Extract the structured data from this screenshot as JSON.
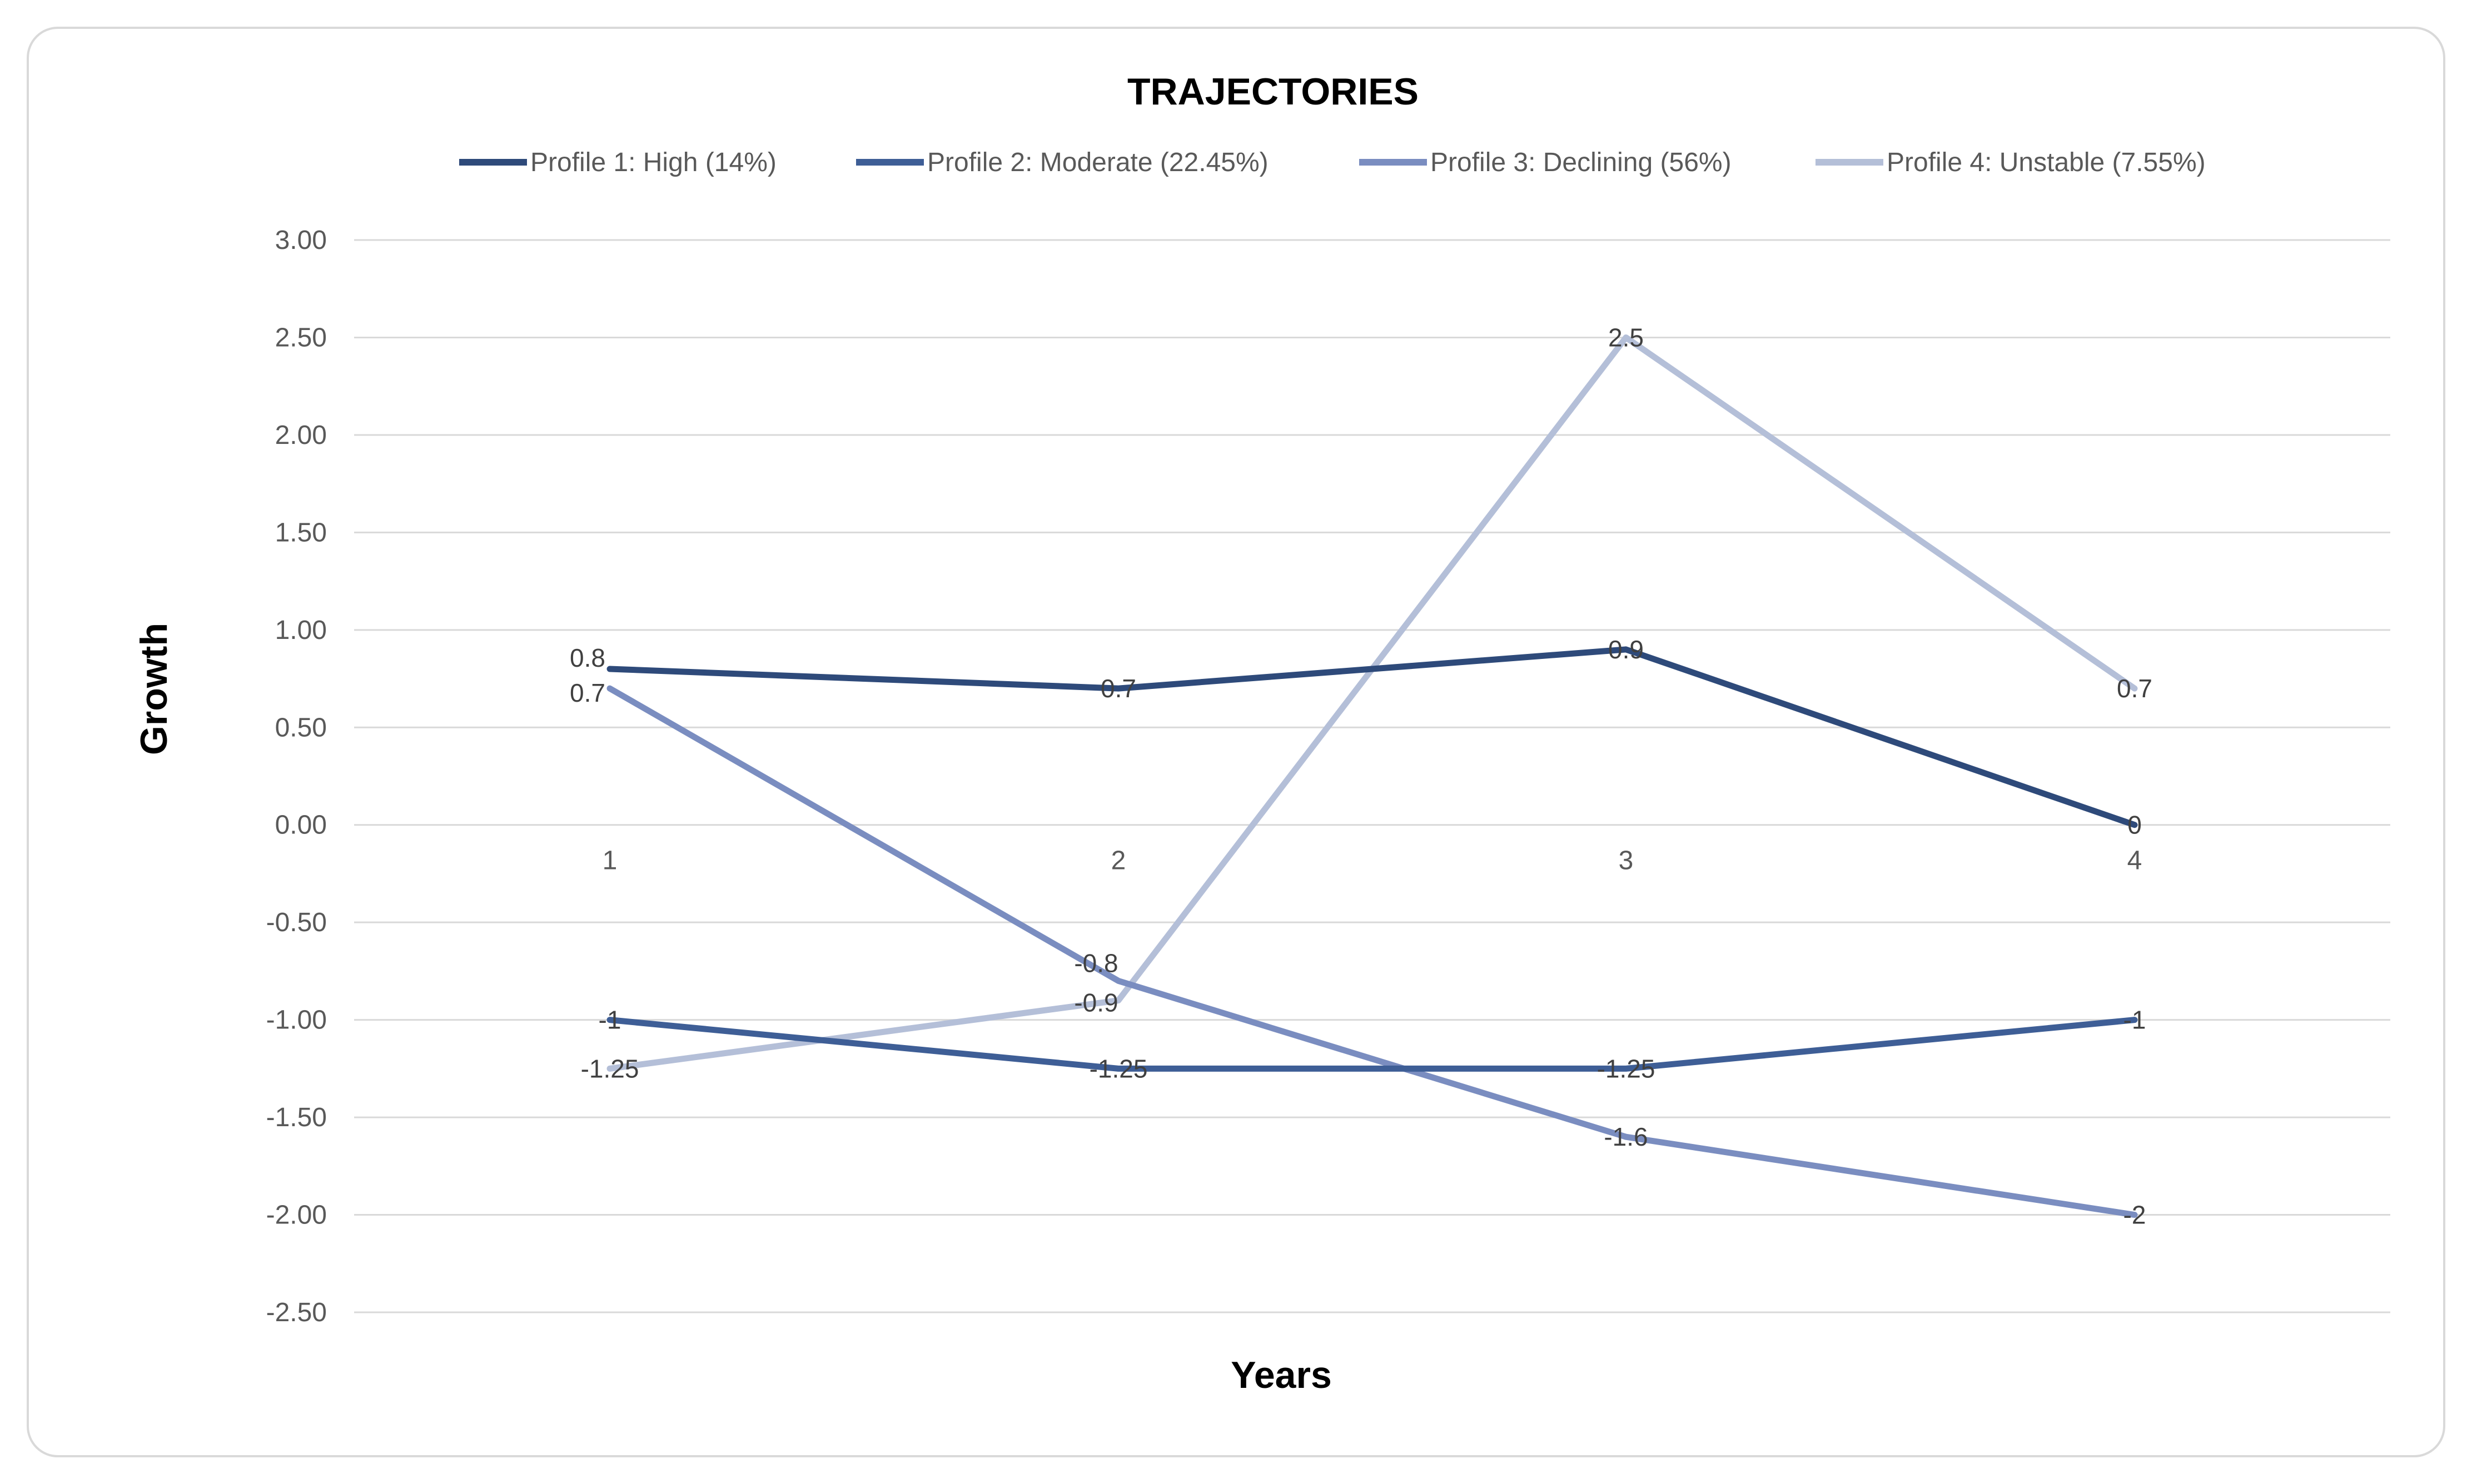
{
  "chart_data": {
    "type": "line",
    "title": "TRAJECTORIES",
    "xlabel": "Years",
    "ylabel": "Growth",
    "categories": [
      "1",
      "2",
      "3",
      "4"
    ],
    "y_ticks": [
      "3.00",
      "2.50",
      "2.00",
      "1.50",
      "1.00",
      "0.50",
      "0.00",
      "-0.50",
      "-1.00",
      "-1.50",
      "-2.00",
      "-2.50"
    ],
    "ylim": [
      -2.5,
      3.0
    ],
    "grid": true,
    "legend_position": "top",
    "series": [
      {
        "name": "Profile 1: High (14%)",
        "color": "#2e4a7a",
        "values": [
          0.8,
          0.7,
          0.9,
          0
        ],
        "labels": [
          "0.8",
          "0.7",
          "0.9",
          "0"
        ]
      },
      {
        "name": "Profile 2: Moderate (22.45%)",
        "color": "#3e5e96",
        "values": [
          -1,
          -1.25,
          -1.25,
          -1
        ],
        "labels": [
          "-1",
          "-1.25",
          "-1.25",
          "-1"
        ]
      },
      {
        "name": "Profile 3: Declining (56%)",
        "color": "#7a8dc0",
        "values": [
          0.7,
          -0.8,
          -1.6,
          -2
        ],
        "labels": [
          "0.7",
          "-0.8",
          "-1.6",
          "-2"
        ]
      },
      {
        "name": "Profile 4: Unstable (7.55%)",
        "color": "#b4bfd8",
        "values": [
          -1.25,
          -0.9,
          2.5,
          0.7
        ],
        "labels": [
          "-1.25",
          "-0.9",
          "2.5",
          "0.7"
        ]
      }
    ]
  }
}
